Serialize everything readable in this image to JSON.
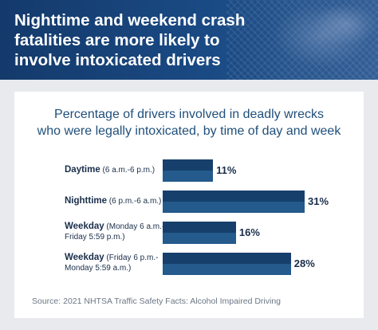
{
  "header": {
    "title": "Nighttime and weekend crash\nfatalities are more likely to\ninvolve intoxicated drivers"
  },
  "chart_data": {
    "type": "bar",
    "orientation": "horizontal",
    "title": "Percentage of drivers involved in deadly wrecks\nwho were legally intoxicated, by time of day and week",
    "categories": [
      {
        "label": "Daytime",
        "detail": "(6 a.m.-6 p.m.)"
      },
      {
        "label": "Nighttime",
        "detail": "(6 p.m.-6 a.m.)"
      },
      {
        "label": "Weekday",
        "detail": "(Monday 6 a.m.-\nFriday 5:59 p.m.)"
      },
      {
        "label": "Weekday",
        "detail": "(Friday 6 p.m.-\nMonday 5:59 a.m.)"
      }
    ],
    "values": [
      11,
      31,
      16,
      28
    ],
    "value_labels": [
      "11%",
      "31%",
      "16%",
      "28%"
    ],
    "xlim": [
      0,
      31
    ],
    "grid": false,
    "bar_colors": [
      "#163f6c",
      "#245a8c"
    ]
  },
  "source": "Source: 2021 NHTSA Traffic Safety Facts: Alcohol Impaired Driving"
}
